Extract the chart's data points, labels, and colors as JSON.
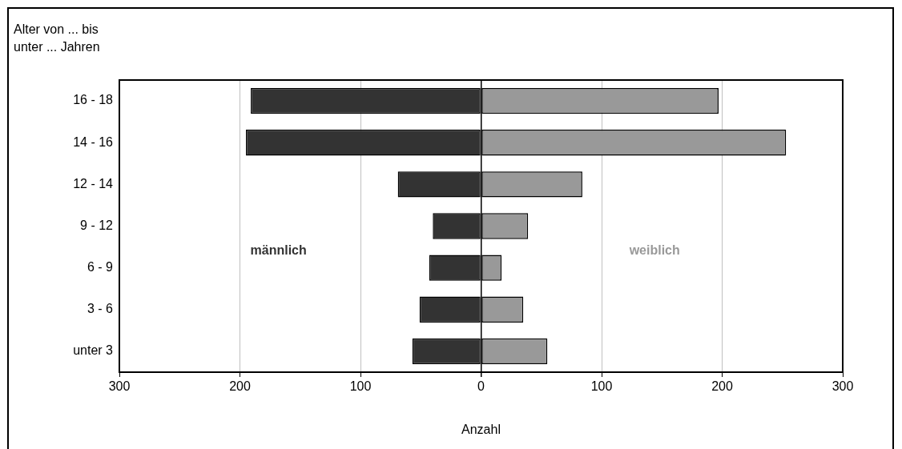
{
  "chart_data": {
    "type": "bar",
    "orientation": "horizontal",
    "stacked": true,
    "ylabel": "Alter von ... bis\nunter ... Jahren",
    "xlabel": "Anzahl",
    "categories": [
      "16 - 18",
      "14 - 16",
      "12 - 14",
      "9 - 12",
      "6 - 9",
      "3 - 6",
      "unter 3"
    ],
    "series": [
      {
        "name": "männlich",
        "color": "#333333",
        "values": [
          -191,
          -195,
          -69,
          -40,
          -43,
          -51,
          -57
        ]
      },
      {
        "name": "weiblich",
        "color": "#999999",
        "values": [
          197,
          253,
          84,
          39,
          17,
          35,
          55
        ]
      }
    ],
    "xlim": [
      -300,
      300
    ],
    "xticks": [
      {
        "value": -300,
        "label": "300"
      },
      {
        "value": -200,
        "label": "200"
      },
      {
        "value": -100,
        "label": "100"
      },
      0,
      100,
      200,
      300
    ],
    "grid": "x",
    "legend": false
  }
}
